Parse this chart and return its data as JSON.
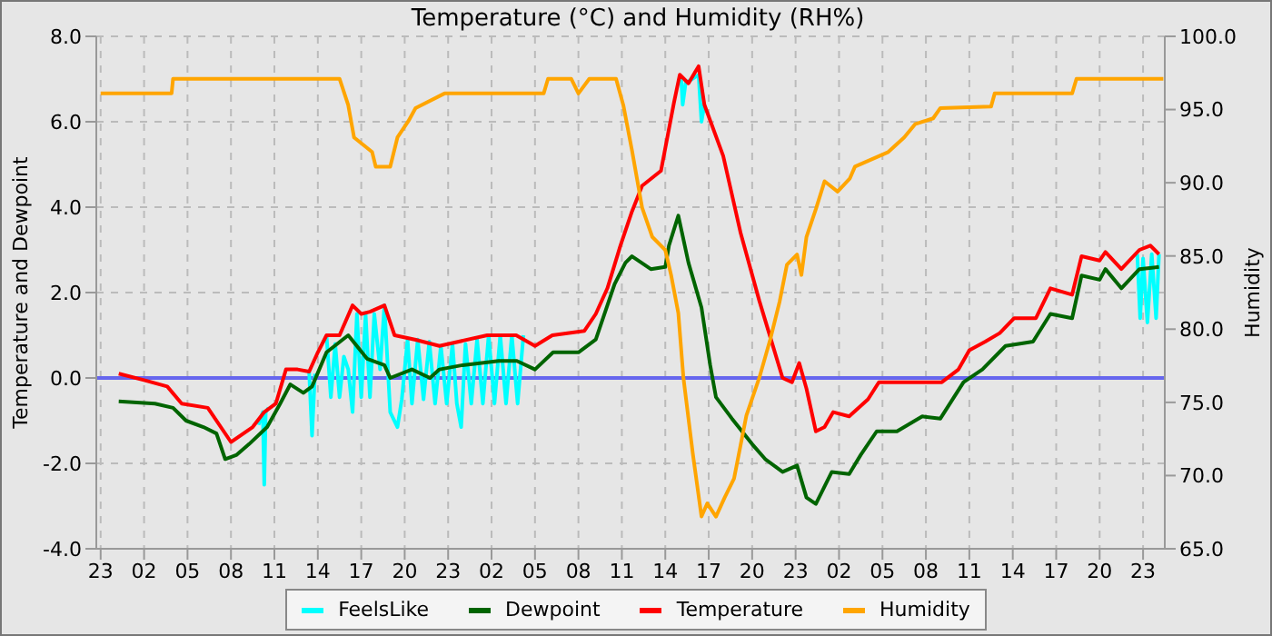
{
  "chart_data": {
    "type": "line",
    "title": "Temperature (°C) and Humidity (RH%)",
    "ylabel": "Temperature and Dewpoint",
    "y2label": "Humidity",
    "xlim": [
      "--01-01T22:42",
      "--01-05T00:30"
    ],
    "xticks": [
      {
        "value": "--01-01T23:00",
        "label": "23"
      },
      {
        "value": "--01-02T02:00",
        "label": "02"
      },
      {
        "value": "--01-02T05:00",
        "label": "05"
      },
      {
        "value": "--01-02T08:00",
        "label": "08"
      },
      {
        "value": "--01-02T11:00",
        "label": "11"
      },
      {
        "value": "--01-02T14:00",
        "label": "14"
      },
      {
        "value": "--01-02T17:00",
        "label": "17"
      },
      {
        "value": "--01-02T20:00",
        "label": "20"
      },
      {
        "value": "--01-02T23:00",
        "label": "23"
      },
      {
        "value": "--01-03T02:00",
        "label": "02"
      },
      {
        "value": "--01-03T05:00",
        "label": "05"
      },
      {
        "value": "--01-03T08:00",
        "label": "08"
      },
      {
        "value": "--01-03T11:00",
        "label": "11"
      },
      {
        "value": "--01-03T14:00",
        "label": "14"
      },
      {
        "value": "--01-03T17:00",
        "label": "17"
      },
      {
        "value": "--01-03T20:00",
        "label": "20"
      },
      {
        "value": "--01-03T23:00",
        "label": "23"
      },
      {
        "value": "--01-04T02:00",
        "label": "02"
      },
      {
        "value": "--01-04T05:00",
        "label": "05"
      },
      {
        "value": "--01-04T08:00",
        "label": "08"
      },
      {
        "value": "--01-04T11:00",
        "label": "11"
      },
      {
        "value": "--01-04T14:00",
        "label": "14"
      },
      {
        "value": "--01-04T17:00",
        "label": "17"
      },
      {
        "value": "--01-04T20:00",
        "label": "20"
      },
      {
        "value": "--01-04T23:00",
        "label": "23"
      }
    ],
    "ylim": [
      -4,
      8
    ],
    "yticks": [
      {
        "value": -4,
        "label": "-4.0"
      },
      {
        "value": -2,
        "label": "-2.0"
      },
      {
        "value": 0,
        "label": "0.0"
      },
      {
        "value": 2,
        "label": "2.0"
      },
      {
        "value": 4,
        "label": "4.0"
      },
      {
        "value": 6,
        "label": "6.0"
      },
      {
        "value": 8,
        "label": "8.0"
      }
    ],
    "y2lim": [
      65,
      100
    ],
    "y2ticks": [
      {
        "value": 65,
        "label": "65.0"
      },
      {
        "value": 70,
        "label": "70.0"
      },
      {
        "value": 75,
        "label": "75.0"
      },
      {
        "value": 80,
        "label": "80.0"
      },
      {
        "value": 85,
        "label": "85.0"
      },
      {
        "value": 90,
        "label": "90.0"
      },
      {
        "value": 95,
        "label": "95.0"
      },
      {
        "value": 100,
        "label": "100.0"
      }
    ],
    "grid": true,
    "legend": "bottom",
    "marker": "none",
    "line_style": "solid",
    "ref_lines": [
      {
        "axis": "y",
        "value": 0,
        "color": "#6666ee"
      }
    ],
    "series": [
      {
        "name": "FeelsLike",
        "color": "#00ffff",
        "x": [
          "--01-02T09:54",
          "--01-02T10:12",
          "--01-02T10:18",
          "--01-02T10:24",
          "--01-02T10:36",
          "--01-02T11:00",
          "--01-02T13:24",
          "--01-02T13:36",
          "--01-02T13:48",
          "--01-02T14:00",
          "--01-02T14:36",
          "--01-02T14:54",
          "--01-02T15:12",
          "--01-02T15:30",
          "--01-02T15:48",
          "--01-02T16:06",
          "--01-02T16:24",
          "--01-02T16:42",
          "--01-02T17:00",
          "--01-02T17:18",
          "--01-02T17:36",
          "--01-02T17:54",
          "--01-02T18:18",
          "--01-02T18:36",
          "--01-02T19:00",
          "--01-02T19:30",
          "--01-02T19:48",
          "--01-02T20:12",
          "--01-02T20:30",
          "--01-02T20:54",
          "--01-02T21:18",
          "--01-02T21:42",
          "--01-02T22:06",
          "--01-02T22:30",
          "--01-02T22:54",
          "--01-02T23:18",
          "--01-02T23:36",
          "--01-02T23:54",
          "--01-03T00:12",
          "--01-03T00:36",
          "--01-03T01:00",
          "--01-03T01:24",
          "--01-03T01:48",
          "--01-03T02:12",
          "--01-03T02:36",
          "--01-03T03:00",
          "--01-03T03:24",
          "--01-03T03:48",
          "--01-03T04:12",
          "--01-03T10:00",
          "--01-03T15:06",
          "--01-03T15:12",
          "--01-03T15:24",
          "--01-03T16:18",
          "--01-03T16:30",
          "--01-03T16:42",
          "--01-04T01:00",
          "--01-04T22:36",
          "--01-04T22:48",
          "--01-04T23:00",
          "--01-04T23:18",
          "--01-04T23:36",
          "--01-04T23:54",
          "--01-05T00:06"
        ],
        "values": [
          -1.1,
          -0.8,
          -2.5,
          -0.8,
          -0.7,
          null,
          0.15,
          -1.35,
          0.1,
          null,
          1.0,
          -0.45,
          0.8,
          -0.45,
          0.5,
          0.2,
          -0.8,
          1.5,
          -0.45,
          1.5,
          -0.45,
          1.5,
          0.2,
          1.7,
          -0.8,
          -1.15,
          -0.5,
          0.9,
          -0.6,
          0.9,
          -0.5,
          0.85,
          -0.6,
          0.75,
          -0.6,
          0.8,
          -0.6,
          -1.15,
          0.8,
          -0.6,
          0.9,
          -0.6,
          1.0,
          -0.6,
          1.0,
          -0.6,
          1.0,
          -0.6,
          1.0,
          null,
          7.0,
          6.4,
          6.9,
          7.1,
          6.0,
          6.4,
          null,
          2.9,
          1.4,
          2.8,
          1.3,
          2.9,
          1.4,
          2.9
        ]
      },
      {
        "name": "Dewpoint",
        "color": "#006400",
        "x": [
          "--01-02T00:15",
          "--01-02T02:45",
          "--01-02T04:00",
          "--01-02T04:54",
          "--01-02T06:06",
          "--01-02T07:00",
          "--01-02T07:36",
          "--01-02T08:24",
          "--01-02T09:15",
          "--01-02T10:30",
          "--01-02T11:24",
          "--01-02T12:06",
          "--01-02T13:00",
          "--01-02T13:36",
          "--01-02T14:36",
          "--01-02T16:06",
          "--01-02T17:24",
          "--01-02T18:36",
          "--01-02T19:00",
          "--01-02T20:30",
          "--01-02T21:45",
          "--01-02T22:24",
          "--01-03T00:00",
          "--01-03T02:30",
          "--01-03T03:45",
          "--01-03T05:00",
          "--01-03T06:15",
          "--01-03T08:00",
          "--01-03T09:12",
          "--01-03T10:30",
          "--01-03T11:15",
          "--01-03T11:42",
          "--01-03T13:00",
          "--01-03T14:00",
          "--01-03T14:15",
          "--01-03T14:54",
          "--01-03T15:36",
          "--01-03T16:30",
          "--01-03T17:06",
          "--01-03T17:30",
          "--01-03T18:36",
          "--01-03T20:00",
          "--01-03T20:54",
          "--01-03T22:06",
          "--01-03T23:06",
          "--01-03T23:45",
          "--01-04T00:24",
          "--01-04T01:30",
          "--01-04T02:42",
          "--01-04T03:30",
          "--01-04T04:36",
          "--01-04T06:00",
          "--01-04T07:45",
          "--01-04T09:00",
          "--01-04T10:36",
          "--01-04T11:54",
          "--01-04T13:30",
          "--01-04T15:24",
          "--01-04T16:36",
          "--01-04T18:06",
          "--01-04T18:45",
          "--01-04T20:00",
          "--01-04T20:24",
          "--01-04T21:30",
          "--01-04T22:45",
          "--01-05T00:06"
        ],
        "values": [
          -0.55,
          -0.6,
          -0.7,
          -1.0,
          -1.15,
          -1.3,
          -1.9,
          -1.8,
          -1.55,
          -1.15,
          -0.6,
          -0.15,
          -0.35,
          -0.2,
          0.6,
          1.0,
          0.45,
          0.3,
          0,
          0.2,
          0,
          0.2,
          0.3,
          0.4,
          0.4,
          0.2,
          0.6,
          0.6,
          0.9,
          2.2,
          2.7,
          2.85,
          2.55,
          2.6,
          3.1,
          3.8,
          2.7,
          1.65,
          0.3,
          -0.45,
          -0.95,
          -1.55,
          -1.9,
          -2.2,
          -2.05,
          -2.8,
          -2.95,
          -2.2,
          -2.25,
          -1.8,
          -1.25,
          -1.25,
          -0.9,
          -0.95,
          -0.1,
          0.2,
          0.75,
          0.85,
          1.5,
          1.4,
          2.4,
          2.3,
          2.55,
          2.1,
          2.55,
          2.6
        ]
      },
      {
        "name": "Temperature",
        "color": "#ff0000",
        "x": [
          "--01-02T00:15",
          "--01-02T02:00",
          "--01-02T03:36",
          "--01-02T04:36",
          "--01-02T06:24",
          "--01-02T08:00",
          "--01-02T09:30",
          "--01-02T10:18",
          "--01-02T11:06",
          "--01-02T11:48",
          "--01-02T12:36",
          "--01-02T13:24",
          "--01-02T14:00",
          "--01-02T14:36",
          "--01-02T15:30",
          "--01-02T16:24",
          "--01-02T17:00",
          "--01-02T17:36",
          "--01-02T18:36",
          "--01-02T19:18",
          "--01-02T20:42",
          "--01-02T22:24",
          "--01-03T01:42",
          "--01-03T03:42",
          "--01-03T05:00",
          "--01-03T06:12",
          "--01-03T08:24",
          "--01-03T09:12",
          "--01-03T10:00",
          "--01-03T10:54",
          "--01-03T11:42",
          "--01-03T12:24",
          "--01-03T13:42",
          "--01-03T14:36",
          "--01-03T15:00",
          "--01-03T15:36",
          "--01-03T16:18",
          "--01-03T16:42",
          "--01-03T18:00",
          "--01-03T19:12",
          "--01-03T20:30",
          "--01-03T21:18",
          "--01-03T22:06",
          "--01-03T22:45",
          "--01-03T23:15",
          "--01-03T23:45",
          "--01-04T00:24",
          "--01-04T01:00",
          "--01-04T01:36",
          "--01-04T02:42",
          "--01-04T04:00",
          "--01-04T04:45",
          "--01-04T06:00",
          "--01-04T07:45",
          "--01-04T09:06",
          "--01-04T10:15",
          "--01-04T11:00",
          "--01-04T12:06",
          "--01-04T13:06",
          "--01-04T14:06",
          "--01-04T15:36",
          "--01-04T16:36",
          "--01-04T18:06",
          "--01-04T18:45",
          "--01-04T20:00",
          "--01-04T20:24",
          "--01-04T21:30",
          "--01-04T22:45",
          "--01-04T23:30",
          "--01-05T00:06"
        ],
        "values": [
          0.1,
          -0.05,
          -0.2,
          -0.6,
          -0.7,
          -1.5,
          -1.15,
          -0.8,
          -0.6,
          0.2,
          0.2,
          0.15,
          0.6,
          1.0,
          1.0,
          1.7,
          1.5,
          1.55,
          1.7,
          1.0,
          0.9,
          0.75,
          1.0,
          1.0,
          0.75,
          1.0,
          1.1,
          1.5,
          2.1,
          3.1,
          3.9,
          4.5,
          4.85,
          6.45,
          7.1,
          6.9,
          7.3,
          6.4,
          5.2,
          3.4,
          1.8,
          0.9,
          0,
          -0.1,
          0.35,
          -0.25,
          -1.25,
          -1.15,
          -0.8,
          -0.9,
          -0.5,
          -0.1,
          -0.1,
          -0.1,
          -0.1,
          0.2,
          0.65,
          0.85,
          1.05,
          1.4,
          1.4,
          2.1,
          1.95,
          2.85,
          2.75,
          2.95,
          2.55,
          3.0,
          3.1,
          2.9
        ]
      },
      {
        "name": "Humidity",
        "color": "#ffa500",
        "axis": "y2",
        "x": [
          "--01-01T23:00",
          "--01-02T03:54",
          "--01-02T04:00",
          "--01-02T07:45",
          "--01-02T15:30",
          "--01-02T16:06",
          "--01-02T16:30",
          "--01-02T17:45",
          "--01-02T18:00",
          "--01-02T19:00",
          "--01-02T19:30",
          "--01-02T20:15",
          "--01-02T20:45",
          "--01-02T22:45",
          "--01-03T05:36",
          "--01-03T05:54",
          "--01-03T07:30",
          "--01-03T08:00",
          "--01-03T08:45",
          "--01-03T10:36",
          "--01-03T11:06",
          "--01-03T11:42",
          "--01-03T12:24",
          "--01-03T13:06",
          "--01-03T14:00",
          "--01-03T14:24",
          "--01-03T14:54",
          "--01-03T15:15",
          "--01-03T15:54",
          "--01-03T16:30",
          "--01-03T16:54",
          "--01-03T17:30",
          "--01-03T18:06",
          "--01-03T18:45",
          "--01-03T19:36",
          "--01-03T20:30",
          "--01-03T21:15",
          "--01-03T21:54",
          "--01-03T22:24",
          "--01-03T23:06",
          "--01-03T23:24",
          "--01-03T23:45",
          "--01-04T00:24",
          "--01-04T01:00",
          "--01-04T01:54",
          "--01-04T02:45",
          "--01-04T03:06",
          "--01-04T05:24",
          "--01-04T06:30",
          "--01-04T07:15",
          "--01-04T08:30",
          "--01-04T09:00",
          "--01-04T12:30",
          "--01-04T12:45",
          "--01-04T18:06",
          "--01-04T18:24",
          "--01-05T00:24"
        ],
        "values": [
          96.1,
          96.1,
          97.1,
          97.1,
          97.1,
          95.3,
          93.1,
          92.1,
          91.1,
          91.1,
          93.1,
          94.2,
          95.1,
          96.1,
          96.1,
          97.1,
          97.1,
          96.1,
          97.1,
          97.1,
          95.3,
          92.2,
          88.3,
          86.3,
          85.4,
          83.7,
          81.1,
          76.7,
          71.5,
          67.2,
          68.1,
          67.2,
          68.5,
          69.8,
          74.1,
          76.7,
          79.3,
          81.9,
          84.4,
          85.1,
          83.7,
          86.3,
          88.2,
          90.1,
          89.4,
          90.3,
          91.1,
          92.1,
          93.1,
          94.0,
          94.4,
          95.1,
          95.2,
          96.1,
          96.1,
          97.1,
          97.1
        ]
      }
    ]
  }
}
